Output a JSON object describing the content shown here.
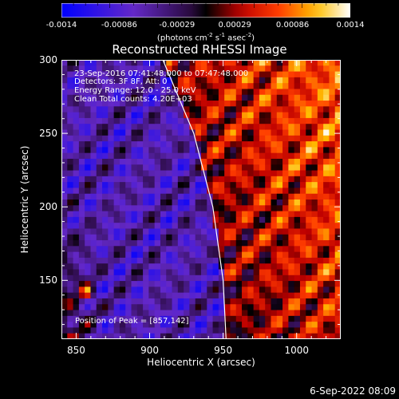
{
  "colorbar": {
    "tick_labels": [
      "-0.0014",
      "-0.00086",
      "-0.00029",
      "0.00029",
      "0.00086",
      "0.0014"
    ],
    "units_label": "(photons cm",
    "units_exp1": "-2",
    "units_mid": " s",
    "units_exp2": "-1",
    "units_end": " asec",
    "units_exp3": "-2",
    "units_close": ")"
  },
  "annotations": {
    "time_range": "23-Sep-2016 07:41:48.000 to 07:47:48.000",
    "detectors": "Detectors: 3F 8F, Att: 0",
    "energy_range": "Energy Range: 12.0 - 25.0 keV",
    "method": "Clean     Total counts: 4.20E+03",
    "peak": "Position of Peak = [857,142]"
  },
  "footer": {
    "date": "6-Sep-2022 08:09"
  },
  "chart_data": {
    "type": "heatmap",
    "title": "Reconstructed RHESSI Image",
    "xlabel": "Heliocentric X (arcsec)",
    "ylabel": "Heliocentric Y (arcsec)",
    "xlim": [
      840,
      1030
    ],
    "ylim": [
      110,
      300
    ],
    "x_ticks": [
      850,
      900,
      950,
      1000
    ],
    "y_ticks": [
      150,
      200,
      250,
      300
    ],
    "color_range": [
      -0.0014,
      0.0014
    ],
    "colormap": "blue-purple-black-red-orange-yellow-white",
    "peak_position": [
      857,
      142
    ],
    "limb_curve": [
      [
        909,
        300
      ],
      [
        930,
        250
      ],
      [
        943,
        200
      ],
      [
        950,
        150
      ],
      [
        952,
        110
      ]
    ]
  }
}
